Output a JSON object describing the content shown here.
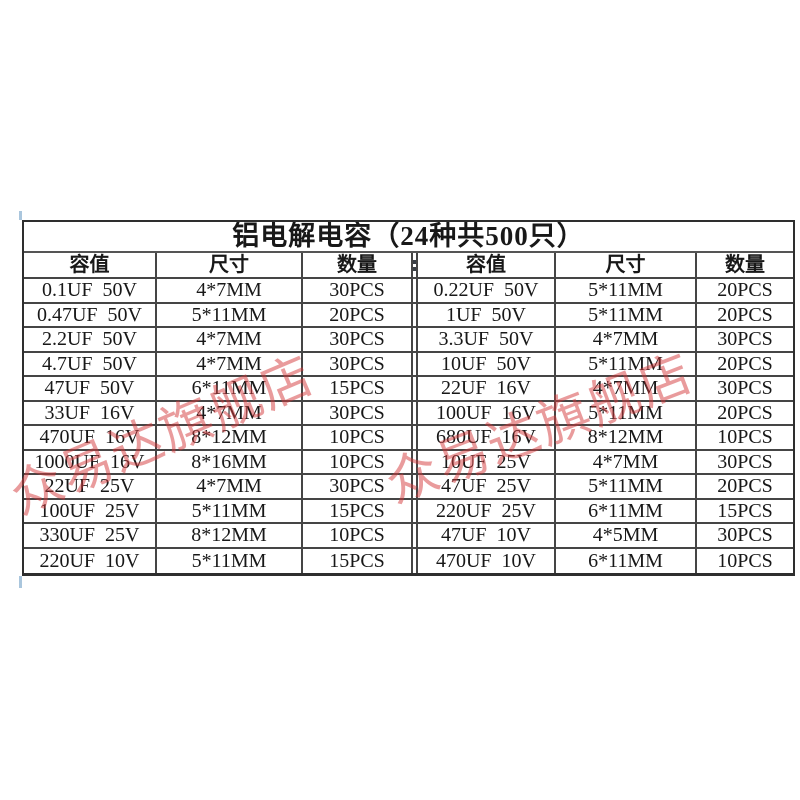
{
  "page": {
    "background": "#ffffff"
  },
  "table": {
    "title": "铝电解电容（24种共500只）",
    "column_headers": [
      "容值",
      "尺寸",
      "数量"
    ],
    "left_rows": [
      [
        "0.1UF  50V",
        "4*7MM",
        "30PCS"
      ],
      [
        "0.47UF  50V",
        "5*11MM",
        "20PCS"
      ],
      [
        "2.2UF  50V",
        "4*7MM",
        "30PCS"
      ],
      [
        "4.7UF  50V",
        "4*7MM",
        "30PCS"
      ],
      [
        "47UF  50V",
        "6*11MM",
        "15PCS"
      ],
      [
        "33UF  16V",
        "4*7MM",
        "30PCS"
      ],
      [
        "470UF  16V",
        "8*12MM",
        "10PCS"
      ],
      [
        "1000UF  16V",
        "8*16MM",
        "10PCS"
      ],
      [
        "22UF  25V",
        "4*7MM",
        "30PCS"
      ],
      [
        "100UF  25V",
        "5*11MM",
        "15PCS"
      ],
      [
        "330UF  25V",
        "8*12MM",
        "10PCS"
      ],
      [
        "220UF  10V",
        "5*11MM",
        "15PCS"
      ]
    ],
    "right_rows": [
      [
        "0.22UF  50V",
        "5*11MM",
        "20PCS"
      ],
      [
        "1UF  50V",
        "5*11MM",
        "20PCS"
      ],
      [
        "3.3UF  50V",
        "4*7MM",
        "30PCS"
      ],
      [
        "10UF  50V",
        "5*11MM",
        "20PCS"
      ],
      [
        "22UF  16V",
        "4*7MM",
        "30PCS"
      ],
      [
        "100UF  16V",
        "5*11MM",
        "20PCS"
      ],
      [
        "680UF  16V",
        "8*12MM",
        "10PCS"
      ],
      [
        "10UF  25V",
        "4*7MM",
        "30PCS"
      ],
      [
        "47UF  25V",
        "5*11MM",
        "20PCS"
      ],
      [
        "220UF  25V",
        "6*11MM",
        "15PCS"
      ],
      [
        "47UF  10V",
        "4*5MM",
        "30PCS"
      ],
      [
        "470UF  10V",
        "6*11MM",
        "10PCS"
      ]
    ]
  },
  "watermark": {
    "text": "众易达旗舰店",
    "color_hex": "#d43a3c",
    "opacity": 0.5
  },
  "colors": {
    "border": "#454545",
    "outer_border": "#2e2e2e",
    "text": "#181818",
    "guide_mark": "#aac6dd"
  }
}
